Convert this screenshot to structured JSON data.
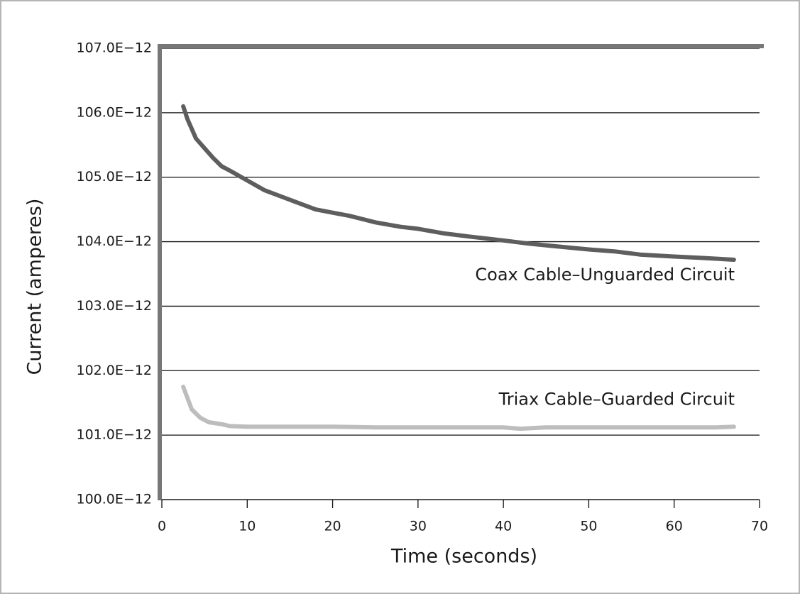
{
  "chart_data": {
    "type": "line",
    "x_label": "Time (seconds)",
    "y_label": "Current (amperes)",
    "xlim": [
      0,
      70
    ],
    "xticks": [
      0,
      10,
      20,
      30,
      40,
      50,
      60,
      70
    ],
    "ylim": [
      1e-10,
      1.07e-10
    ],
    "yticks": [
      {
        "value": 1e-10,
        "label": "100.0E−12"
      },
      {
        "value": 1.01e-10,
        "label": "101.0E−12"
      },
      {
        "value": 1.02e-10,
        "label": "102.0E−12"
      },
      {
        "value": 1.03e-10,
        "label": "103.0E−12"
      },
      {
        "value": 1.04e-10,
        "label": "104.0E−12"
      },
      {
        "value": 1.05e-10,
        "label": "105.0E−12"
      },
      {
        "value": 1.06e-10,
        "label": "106.0E−12"
      },
      {
        "value": 1.07e-10,
        "label": "107.0E−12"
      }
    ],
    "grid": true,
    "series": [
      {
        "name": "Coax Cable–Unguarded Circuit",
        "color": "#5e5e5e",
        "x": [
          2.5,
          3,
          4,
          5,
          6,
          7,
          8,
          10,
          12,
          14,
          16,
          18,
          20,
          22,
          25,
          28,
          30,
          33,
          36,
          40,
          43,
          46,
          50,
          53,
          56,
          60,
          63,
          67
        ],
        "values": [
          1.061e-10,
          1.059e-10,
          1.056e-10,
          1.0545e-10,
          1.053e-10,
          1.0517e-10,
          1.051e-10,
          1.0495e-10,
          1.048e-10,
          1.047e-10,
          1.046e-10,
          1.045e-10,
          1.0445e-10,
          1.044e-10,
          1.043e-10,
          1.0423e-10,
          1.042e-10,
          1.0413e-10,
          1.0408e-10,
          1.0402e-10,
          1.0397e-10,
          1.0393e-10,
          1.0388e-10,
          1.0385e-10,
          1.038e-10,
          1.0377e-10,
          1.0375e-10,
          1.0372e-10
        ]
      },
      {
        "name": "Triax Cable–Guarded Circuit",
        "color": "#bdbdbd",
        "x": [
          2.5,
          3.5,
          4.5,
          5.5,
          7,
          8,
          10,
          15,
          20,
          25,
          30,
          35,
          40,
          42,
          45,
          50,
          55,
          60,
          65,
          67
        ],
        "values": [
          1.0175e-10,
          1.014e-10,
          1.0127e-10,
          1.012e-10,
          1.0117e-10,
          1.0114e-10,
          1.0113e-10,
          1.0113e-10,
          1.0113e-10,
          1.0112e-10,
          1.0112e-10,
          1.0112e-10,
          1.0112e-10,
          1.011e-10,
          1.0112e-10,
          1.0112e-10,
          1.0112e-10,
          1.0112e-10,
          1.0112e-10,
          1.0113e-10
        ]
      }
    ]
  }
}
